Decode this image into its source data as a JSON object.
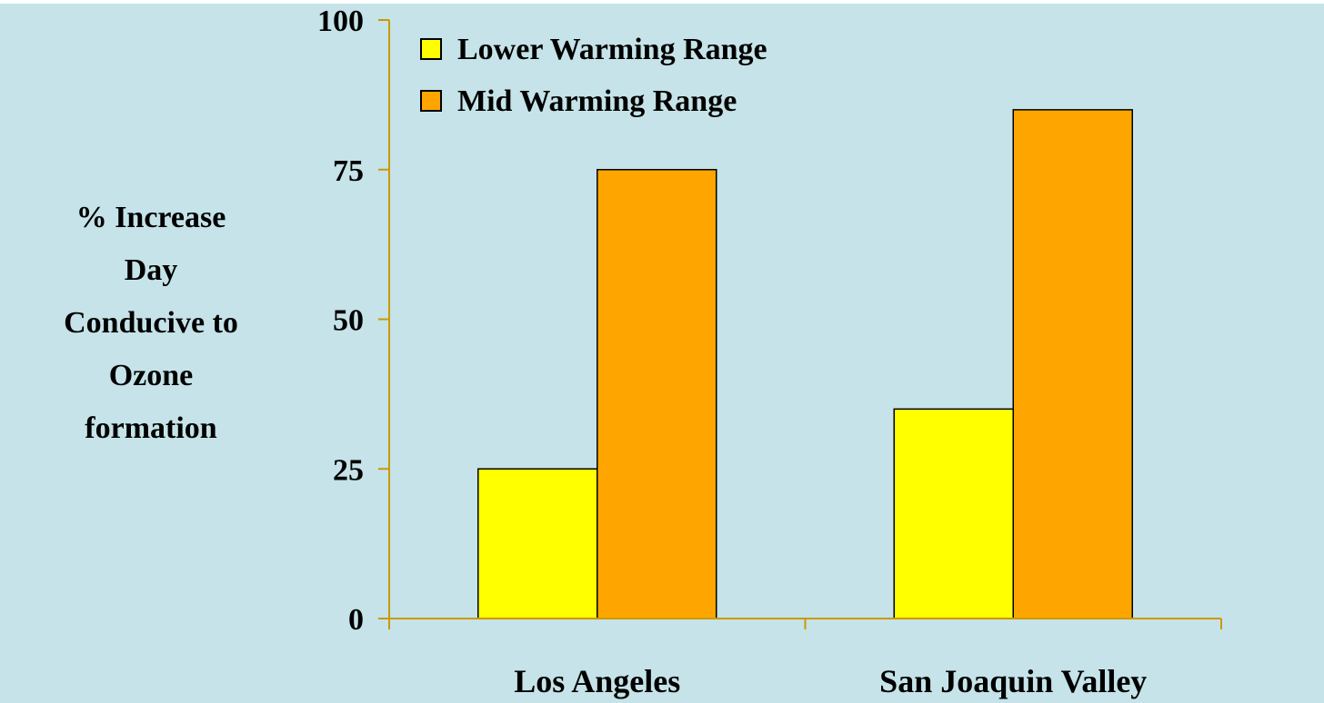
{
  "chart_data": {
    "type": "bar",
    "categories": [
      "Los Angeles",
      "San Joaquin Valley"
    ],
    "series": [
      {
        "name": "Lower Warming Range",
        "values": [
          25,
          35
        ],
        "color": "#FFFF00"
      },
      {
        "name": "Mid Warming Range",
        "values": [
          75,
          85
        ],
        "color": "#FFA500"
      }
    ],
    "ylabel_lines": [
      "% Increase",
      "Day",
      "Conducive to",
      "Ozone",
      "formation"
    ],
    "xlabel": "",
    "title": "",
    "ylim": [
      0,
      100
    ],
    "yticks": [
      0,
      25,
      50,
      75,
      100
    ],
    "grid": false,
    "legend_position": "top-left",
    "axis_color": "#CC9900",
    "background_color": "#C5E3E8",
    "outer_background_color": "#FFFFFF"
  }
}
